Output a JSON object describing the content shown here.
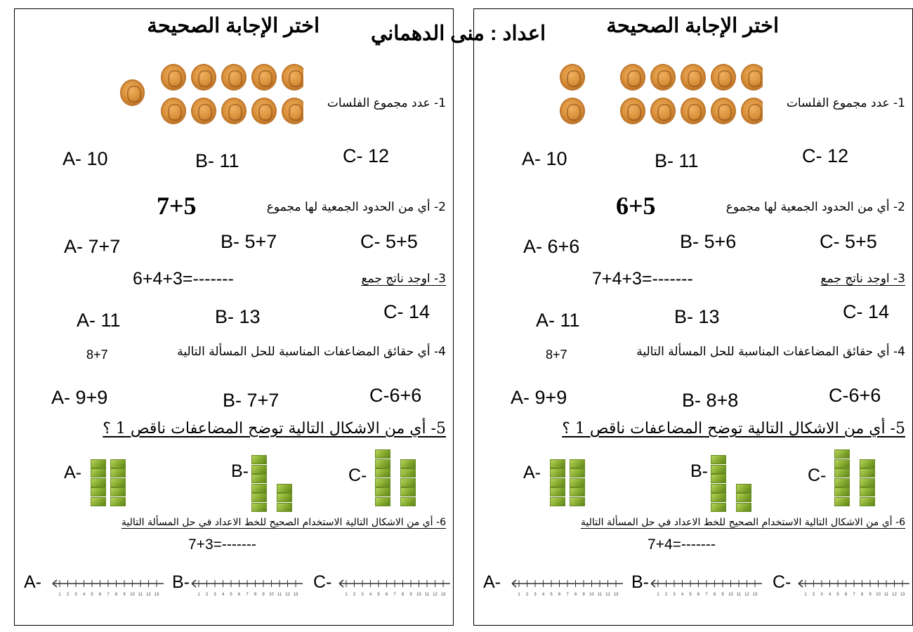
{
  "author": "اعداد : منى الدهماني",
  "pages": [
    {
      "title": "اختر الإجابة الصحيحة",
      "coins_left": 1,
      "coins_right_rows": [
        5,
        5
      ],
      "q1": "1- عدد مجموع الفلسات",
      "q1_answers": [
        "A- 10",
        "B- 11",
        "C- 12"
      ],
      "q2": "2- أي من الحدود الجمعية لها مجموع",
      "q2_sum": "7+5",
      "q2_answers": [
        "A- 7+7",
        "B- 5+7",
        "C- 5+5"
      ],
      "q3": "3- اوجد ناتج  جمع",
      "q3_expr": "6+4+3=-------",
      "q3_answers": [
        "A- 11",
        "B- 13",
        "C- 14"
      ],
      "q4": "4- أي حقائق المضاعفات المناسبة للحل المسألة التالية",
      "q4_expr": "8+7",
      "q4_answers": [
        "A- 9+9",
        "B- 7+7",
        "C-6+6"
      ],
      "q5": "5-  أي من الاشكال التالية توضح المضاعفات ناقص 1 ؟",
      "q5_options": [
        {
          "label": "A-",
          "columns": [
            5,
            5
          ]
        },
        {
          "label": "B-",
          "columns": [
            6,
            3
          ]
        },
        {
          "label": "C-",
          "columns": [
            6,
            5
          ]
        }
      ],
      "q6": "6-  أي من الاشكال التالية الاستخدام الصحيح للخط الاعداد في حل المسألة التالية",
      "q6_expr": "7+3=-------",
      "q6_options": [
        "A-",
        "B-",
        "C-"
      ]
    },
    {
      "title": "اختر الإجابة الصحيحة",
      "coins_left": 2,
      "coins_right_rows": [
        5,
        5
      ],
      "q1": "1- عدد مجموع الفلسات",
      "q1_answers": [
        "A- 10",
        "B- 11",
        "C- 12"
      ],
      "q2": "2- أي من الحدود الجمعية لها مجموع",
      "q2_sum": "6+5",
      "q2_answers": [
        "A- 6+6",
        "B- 5+6",
        "C- 5+5"
      ],
      "q3": "3- اوجد ناتج  جمع",
      "q3_expr": "7+4+3=-------",
      "q3_answers": [
        "A- 11",
        "B- 13",
        "C- 14"
      ],
      "q4": "4- أي حقائق المضاعفات المناسبة للحل المسألة التالية",
      "q4_expr": "8+7",
      "q4_answers": [
        "A- 9+9",
        "B- 8+8",
        "C-6+6"
      ],
      "q5": "5-  أي من الاشكال التالية توضح المضاعفات ناقص 1 ؟",
      "q5_options": [
        {
          "label": "A-",
          "columns": [
            5,
            5
          ]
        },
        {
          "label": "B-",
          "columns": [
            6,
            3
          ]
        },
        {
          "label": "C-",
          "columns": [
            6,
            5
          ]
        }
      ],
      "q6": "6-  أي من الاشكال التالية الاستخدام الصحيح للخط الاعداد في حل المسألة التالية",
      "q6_expr": "7+4=-------",
      "q6_options": [
        "A-",
        "B-",
        "C-"
      ]
    }
  ],
  "number_line_labels": [
    "1",
    "2",
    "3",
    "4",
    "5",
    "6",
    "7",
    "8",
    "9",
    "10",
    "11",
    "12",
    "13"
  ],
  "colors": {
    "coin": "#d9903a",
    "cube": "#8db53a"
  }
}
